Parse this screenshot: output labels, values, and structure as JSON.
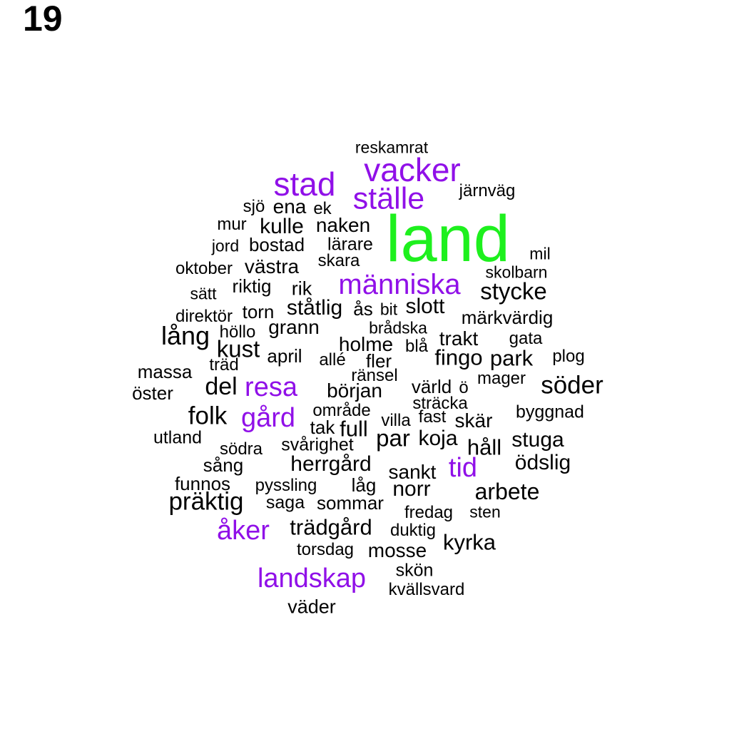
{
  "page_number": "19",
  "colors": {
    "top": "#1ef01e",
    "high": "#9010e8",
    "normal": "#000000"
  },
  "words": [
    {
      "text": "land",
      "tier": "top"
    },
    {
      "text": "vacker",
      "tier": "high"
    },
    {
      "text": "stad",
      "tier": "high"
    },
    {
      "text": "ställe",
      "tier": "high"
    },
    {
      "text": "människa",
      "tier": "high"
    },
    {
      "text": "resa",
      "tier": "high"
    },
    {
      "text": "gård",
      "tier": "high"
    },
    {
      "text": "tid",
      "tier": "high"
    },
    {
      "text": "åker",
      "tier": "high"
    },
    {
      "text": "landskap",
      "tier": "high"
    },
    {
      "text": "reskamrat",
      "tier": "normal"
    },
    {
      "text": "järnväg",
      "tier": "normal"
    },
    {
      "text": "sjö",
      "tier": "normal"
    },
    {
      "text": "ena",
      "tier": "normal"
    },
    {
      "text": "ek",
      "tier": "normal"
    },
    {
      "text": "mur",
      "tier": "normal"
    },
    {
      "text": "kulle",
      "tier": "normal"
    },
    {
      "text": "naken",
      "tier": "normal"
    },
    {
      "text": "jord",
      "tier": "normal"
    },
    {
      "text": "bostad",
      "tier": "normal"
    },
    {
      "text": "lärare",
      "tier": "normal"
    },
    {
      "text": "mil",
      "tier": "normal"
    },
    {
      "text": "oktober",
      "tier": "normal"
    },
    {
      "text": "västra",
      "tier": "normal"
    },
    {
      "text": "skara",
      "tier": "normal"
    },
    {
      "text": "skolbarn",
      "tier": "normal"
    },
    {
      "text": "sätt",
      "tier": "normal"
    },
    {
      "text": "riktig",
      "tier": "normal"
    },
    {
      "text": "rik",
      "tier": "normal"
    },
    {
      "text": "stycke",
      "tier": "normal"
    },
    {
      "text": "direktör",
      "tier": "normal"
    },
    {
      "text": "torn",
      "tier": "normal"
    },
    {
      "text": "ståtlig",
      "tier": "normal"
    },
    {
      "text": "ås",
      "tier": "normal"
    },
    {
      "text": "bit",
      "tier": "normal"
    },
    {
      "text": "slott",
      "tier": "normal"
    },
    {
      "text": "märkvärdig",
      "tier": "normal"
    },
    {
      "text": "lång",
      "tier": "normal"
    },
    {
      "text": "höllo",
      "tier": "normal"
    },
    {
      "text": "grann",
      "tier": "normal"
    },
    {
      "text": "brådska",
      "tier": "normal"
    },
    {
      "text": "trakt",
      "tier": "normal"
    },
    {
      "text": "gata",
      "tier": "normal"
    },
    {
      "text": "kust",
      "tier": "normal"
    },
    {
      "text": "holme",
      "tier": "normal"
    },
    {
      "text": "blå",
      "tier": "normal"
    },
    {
      "text": "april",
      "tier": "normal"
    },
    {
      "text": "fingo",
      "tier": "normal"
    },
    {
      "text": "park",
      "tier": "normal"
    },
    {
      "text": "plog",
      "tier": "normal"
    },
    {
      "text": "massa",
      "tier": "normal"
    },
    {
      "text": "träd",
      "tier": "normal"
    },
    {
      "text": "allé",
      "tier": "normal"
    },
    {
      "text": "fler",
      "tier": "normal"
    },
    {
      "text": "ränsel",
      "tier": "normal"
    },
    {
      "text": "mager",
      "tier": "normal"
    },
    {
      "text": "söder",
      "tier": "normal"
    },
    {
      "text": "öster",
      "tier": "normal"
    },
    {
      "text": "del",
      "tier": "normal"
    },
    {
      "text": "början",
      "tier": "normal"
    },
    {
      "text": "värld",
      "tier": "normal"
    },
    {
      "text": "ö",
      "tier": "normal"
    },
    {
      "text": "sträcka",
      "tier": "normal"
    },
    {
      "text": "folk",
      "tier": "normal"
    },
    {
      "text": "område",
      "tier": "normal"
    },
    {
      "text": "villa",
      "tier": "normal"
    },
    {
      "text": "fast",
      "tier": "normal"
    },
    {
      "text": "skär",
      "tier": "normal"
    },
    {
      "text": "byggnad",
      "tier": "normal"
    },
    {
      "text": "tak",
      "tier": "normal"
    },
    {
      "text": "full",
      "tier": "normal"
    },
    {
      "text": "utland",
      "tier": "normal"
    },
    {
      "text": "par",
      "tier": "normal"
    },
    {
      "text": "koja",
      "tier": "normal"
    },
    {
      "text": "stuga",
      "tier": "normal"
    },
    {
      "text": "södra",
      "tier": "normal"
    },
    {
      "text": "svårighet",
      "tier": "normal"
    },
    {
      "text": "håll",
      "tier": "normal"
    },
    {
      "text": "sång",
      "tier": "normal"
    },
    {
      "text": "herrgård",
      "tier": "normal"
    },
    {
      "text": "sankt",
      "tier": "normal"
    },
    {
      "text": "ödslig",
      "tier": "normal"
    },
    {
      "text": "funnos",
      "tier": "normal"
    },
    {
      "text": "pyssling",
      "tier": "normal"
    },
    {
      "text": "låg",
      "tier": "normal"
    },
    {
      "text": "norr",
      "tier": "normal"
    },
    {
      "text": "arbete",
      "tier": "normal"
    },
    {
      "text": "präktig",
      "tier": "normal"
    },
    {
      "text": "saga",
      "tier": "normal"
    },
    {
      "text": "sommar",
      "tier": "normal"
    },
    {
      "text": "fredag",
      "tier": "normal"
    },
    {
      "text": "sten",
      "tier": "normal"
    },
    {
      "text": "trädgård",
      "tier": "normal"
    },
    {
      "text": "duktig",
      "tier": "normal"
    },
    {
      "text": "kyrka",
      "tier": "normal"
    },
    {
      "text": "torsdag",
      "tier": "normal"
    },
    {
      "text": "mosse",
      "tier": "normal"
    },
    {
      "text": "skön",
      "tier": "normal"
    },
    {
      "text": "kvällsvard",
      "tier": "normal"
    },
    {
      "text": "väder",
      "tier": "normal"
    }
  ]
}
